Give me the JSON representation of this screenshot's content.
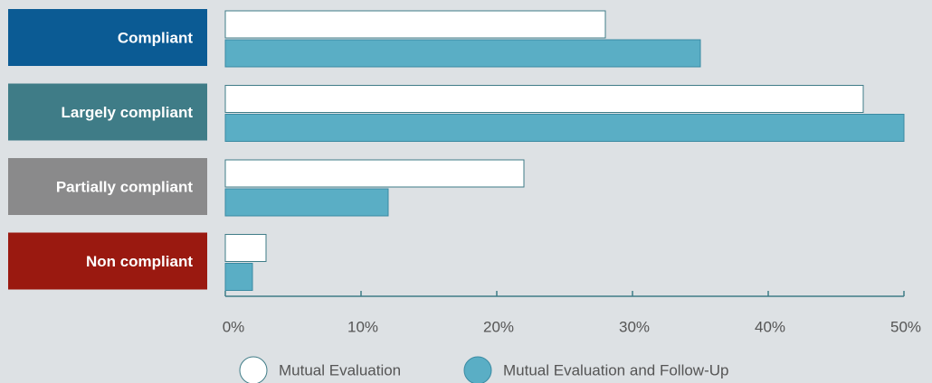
{
  "chart_data": {
    "type": "hbar",
    "categories": [
      "Compliant",
      "Largely compliant",
      "Partially compliant",
      "Non compliant"
    ],
    "category_colors": [
      "#0b5b94",
      "#3f7c87",
      "#8a8a8b",
      "#9a1910"
    ],
    "series": [
      {
        "name": "Mutual Evaluation",
        "color": "#ffffff",
        "values": [
          28,
          47,
          22,
          3
        ]
      },
      {
        "name": "Mutual Evaluation and Follow-Up",
        "color": "#5aaec5",
        "values": [
          35,
          50,
          12,
          2
        ]
      }
    ],
    "xlim": [
      0,
      50
    ],
    "xticks": [
      {
        "value": 0,
        "label": "0%"
      },
      {
        "value": 10,
        "label": "10%"
      },
      {
        "value": 20,
        "label": "20%"
      },
      {
        "value": 30,
        "label": "30%"
      },
      {
        "value": 40,
        "label": "40%"
      },
      {
        "value": 50,
        "label": "50%"
      }
    ]
  }
}
